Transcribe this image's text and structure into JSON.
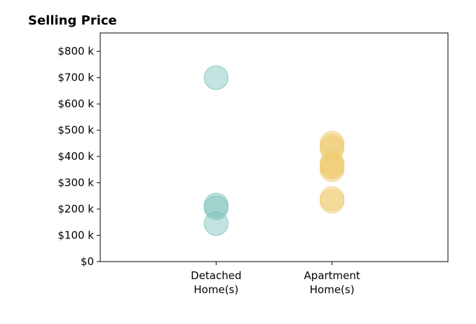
{
  "chart_data": {
    "type": "scatter",
    "title": "Selling Price",
    "xlabel": "",
    "ylabel": "",
    "categories": [
      [
        "Detached",
        "Home(s)"
      ],
      [
        "Apartment",
        "Home(s)"
      ]
    ],
    "xlim": [
      0,
      3
    ],
    "ylim": [
      0,
      870
    ],
    "yticks": [
      0,
      100,
      200,
      300,
      400,
      500,
      600,
      700,
      800
    ],
    "ytick_labels": [
      "$0",
      "$100 k",
      "$200 k",
      "$300 k",
      "$400 k",
      "$500 k",
      "$600 k",
      "$700 k",
      "$800 k"
    ],
    "grid": false,
    "series": [
      {
        "category_index": 0,
        "color": "#78c2b8",
        "values": [
          700,
          215,
          205,
          145
        ]
      },
      {
        "category_index": 1,
        "color": "#f0cc72",
        "values": [
          450,
          440,
          430,
          375,
          365,
          360,
          350,
          240,
          230
        ]
      }
    ]
  }
}
